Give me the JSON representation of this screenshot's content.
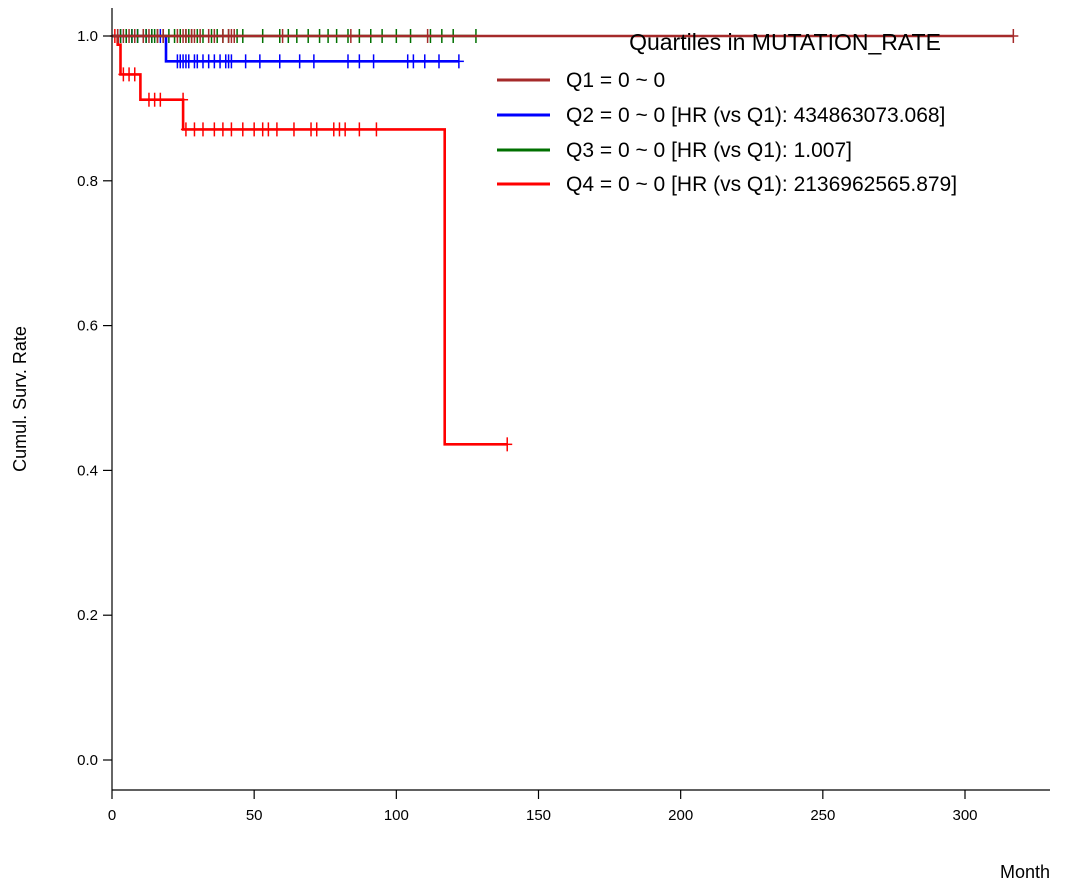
{
  "chart_data": {
    "type": "line",
    "title": "",
    "xlabel": "Month",
    "ylabel": "Cumul. Surv. Rate",
    "xlim": [
      0,
      330
    ],
    "ylim": [
      -0.04,
      1.04
    ],
    "x_ticks": [
      0,
      50,
      100,
      150,
      200,
      250,
      300
    ],
    "y_ticks": [
      0.0,
      0.2,
      0.4,
      0.6,
      0.8,
      1.0
    ],
    "x_tick_labels": [
      "0",
      "50",
      "100",
      "150",
      "200",
      "250",
      "300"
    ],
    "y_tick_labels": [
      "0.0",
      "0.2",
      "0.4",
      "0.6",
      "0.8",
      "1.0"
    ],
    "grid": false,
    "legend": {
      "title": "Quartiles in MUTATION_RATE",
      "placement": "top-right"
    },
    "series": [
      {
        "name": "Q1 = 0 ~ 0",
        "color": "#a52a2a",
        "steps": [
          [
            0,
            1.0
          ],
          [
            317,
            1.0
          ]
        ],
        "censor_x": [
          2,
          4,
          6,
          8,
          11,
          13,
          16,
          18,
          23,
          25,
          26,
          28,
          29,
          31,
          34,
          36,
          39,
          41,
          42,
          43,
          60,
          84,
          111,
          317
        ],
        "censor_y": 1.0
      },
      {
        "name": "Q2 = 0 ~ 0 [HR (vs Q1): 434863073.068]",
        "color": "#0000ff",
        "steps": [
          [
            0,
            1.0
          ],
          [
            19,
            1.0
          ],
          [
            19,
            0.965
          ],
          [
            122,
            0.965
          ]
        ],
        "censor_x": [
          3,
          5,
          7,
          9,
          12,
          14,
          17,
          23,
          24,
          25,
          26,
          27,
          29,
          30,
          32,
          34,
          36,
          38,
          40,
          41,
          42,
          47,
          52,
          59,
          66,
          71,
          83,
          87,
          92,
          104,
          106,
          110,
          115,
          122
        ],
        "censor_y_before": 1.0,
        "censor_y_after": 0.965,
        "censor_split_x": 19
      },
      {
        "name": "Q3 = 0 ~ 0 [HR (vs Q1): 1.007]",
        "color": "#007000",
        "steps": [
          [
            0,
            1.0
          ],
          [
            128,
            1.0
          ]
        ],
        "censor_x": [
          2,
          3,
          5,
          7,
          9,
          11,
          12,
          14,
          15,
          16,
          18,
          20,
          22,
          24,
          26,
          27,
          28,
          30,
          32,
          35,
          37,
          39,
          41,
          44,
          46,
          53,
          59,
          62,
          65,
          69,
          73,
          76,
          79,
          83,
          87,
          91,
          95,
          100,
          105,
          112,
          116,
          120,
          128
        ],
        "censor_y": 1.0
      },
      {
        "name": "Q4 = 0 ~ 0 [HR (vs Q1): 2136962565.879]",
        "color": "#ff0000",
        "steps": [
          [
            0,
            1.0
          ],
          [
            2,
            1.0
          ],
          [
            2,
            0.988
          ],
          [
            3,
            0.988
          ],
          [
            3,
            0.947
          ],
          [
            10,
            0.947
          ],
          [
            10,
            0.912
          ],
          [
            25,
            0.912
          ],
          [
            25,
            0.871
          ],
          [
            117,
            0.871
          ],
          [
            117,
            0.436
          ],
          [
            139,
            0.436
          ]
        ],
        "censor_points": [
          [
            1,
            1.0
          ],
          [
            4,
            0.947
          ],
          [
            6,
            0.947
          ],
          [
            8,
            0.947
          ],
          [
            13,
            0.912
          ],
          [
            15,
            0.912
          ],
          [
            17,
            0.912
          ],
          [
            25,
            0.912
          ],
          [
            26,
            0.871
          ],
          [
            29,
            0.871
          ],
          [
            32,
            0.871
          ],
          [
            36,
            0.871
          ],
          [
            39,
            0.871
          ],
          [
            42,
            0.871
          ],
          [
            46,
            0.871
          ],
          [
            50,
            0.871
          ],
          [
            53,
            0.871
          ],
          [
            55,
            0.871
          ],
          [
            58,
            0.871
          ],
          [
            64,
            0.871
          ],
          [
            70,
            0.871
          ],
          [
            72,
            0.871
          ],
          [
            78,
            0.871
          ],
          [
            80,
            0.871
          ],
          [
            82,
            0.871
          ],
          [
            87,
            0.871
          ],
          [
            93,
            0.871
          ],
          [
            139,
            0.436
          ]
        ]
      }
    ]
  }
}
